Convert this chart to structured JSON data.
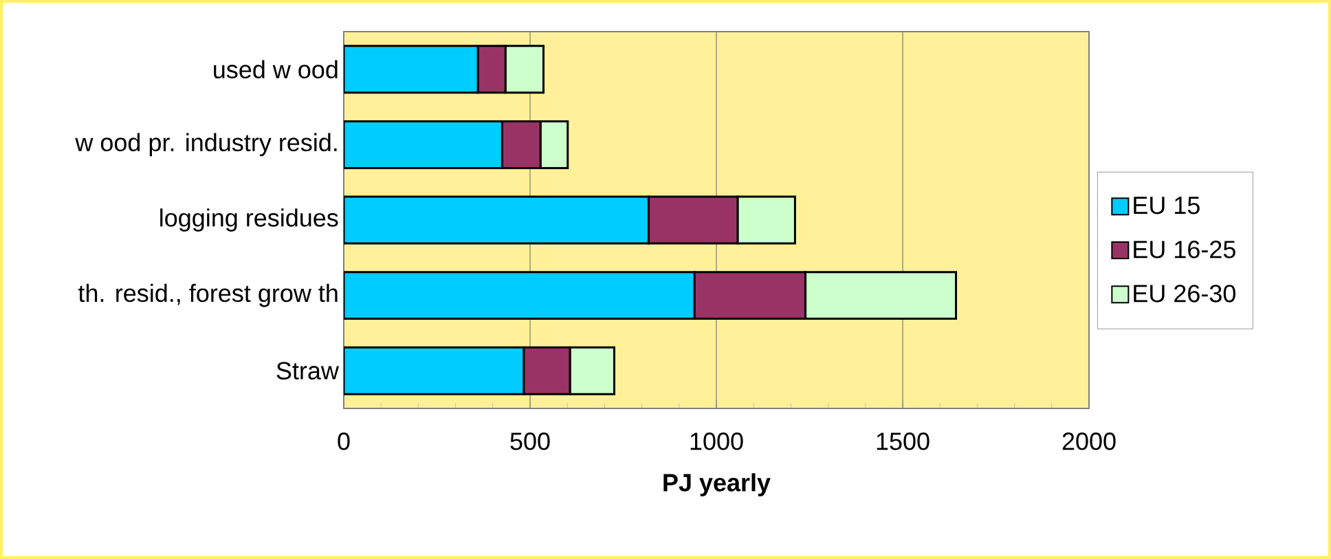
{
  "chart_data": {
    "type": "bar",
    "orientation": "horizontal",
    "stacked": true,
    "xlabel": "PJ yearly",
    "categories": [
      "used w ood",
      "w ood pr. industry resid.",
      "logging residues",
      "th. resid., forest grow th",
      "Straw"
    ],
    "series": [
      {
        "name": "EU 15",
        "color": "#00ccff",
        "values": [
          360,
          425,
          818,
          941,
          483
        ]
      },
      {
        "name": "EU 16-25",
        "color": "#993366",
        "values": [
          74,
          103,
          239,
          298,
          124
        ]
      },
      {
        "name": "EU 26-30",
        "color": "#ccffcc",
        "values": [
          102,
          73,
          154,
          404,
          119
        ]
      }
    ],
    "xlim": [
      0,
      2000
    ],
    "xticks": [
      0,
      500,
      1000,
      1500,
      2000
    ],
    "grid": "x",
    "legend": "right"
  }
}
